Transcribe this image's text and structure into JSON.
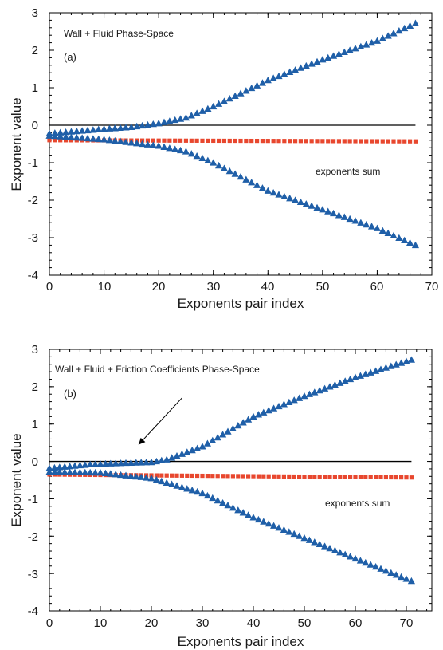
{
  "colors": {
    "triangle": "#1f5fa8",
    "square": "#e8472e",
    "zero_line": "#000000",
    "axis": "#000000"
  },
  "chart_data": [
    {
      "type": "scatter",
      "title": "Wall + Fluid Phase-Space",
      "panel_label": "(a)",
      "xlabel": "Exponents pair index",
      "ylabel": "Exponent value",
      "xlim": [
        0,
        70
      ],
      "ylim": [
        -4,
        3
      ],
      "x_ticks": [
        0,
        10,
        20,
        30,
        40,
        50,
        60,
        70
      ],
      "y_ticks": [
        -4,
        -3,
        -2,
        -1,
        0,
        1,
        2,
        3
      ],
      "grid": false,
      "reference_line_y": 0,
      "annotations": [
        {
          "text": "exponents sum",
          "x": 40,
          "y": -1.2
        }
      ],
      "series": [
        {
          "marker": "triangle",
          "n": 68,
          "knots": [
            [
              0,
              -0.22
            ],
            [
              10,
              -0.1
            ],
            [
              15,
              -0.05
            ],
            [
              20,
              0.05
            ],
            [
              25,
              0.2
            ],
            [
              30,
              0.5
            ],
            [
              40,
              1.2
            ],
            [
              50,
              1.75
            ],
            [
              60,
              2.25
            ],
            [
              67,
              2.72
            ]
          ]
        },
        {
          "marker": "triangle",
          "n": 68,
          "knots": [
            [
              0,
              -0.28
            ],
            [
              10,
              -0.38
            ],
            [
              20,
              -0.55
            ],
            [
              25,
              -0.7
            ],
            [
              30,
              -1.0
            ],
            [
              40,
              -1.75
            ],
            [
              50,
              -2.25
            ],
            [
              60,
              -2.75
            ],
            [
              67,
              -3.2
            ]
          ]
        },
        {
          "name": "exponents sum",
          "marker": "square",
          "n": 68,
          "knots": [
            [
              0,
              -0.4
            ],
            [
              67,
              -0.43
            ]
          ]
        }
      ]
    },
    {
      "type": "scatter",
      "title": "Wall + Fluid + Friction Coefficients Phase-Space",
      "panel_label": "(b)",
      "xlabel": "Exponents pair index",
      "ylabel": "Exponent value",
      "xlim": [
        0,
        75
      ],
      "ylim": [
        -4,
        3
      ],
      "x_ticks": [
        0,
        10,
        20,
        30,
        40,
        50,
        60,
        70
      ],
      "y_ticks": [
        -4,
        -3,
        -2,
        -1,
        0,
        1,
        2,
        3
      ],
      "grid": false,
      "reference_line_y": 0,
      "annotations": [
        {
          "text": "exponents sum",
          "x": 44,
          "y": -1.2
        }
      ],
      "arrow": {
        "from": [
          26,
          1.7
        ],
        "to": [
          17.5,
          0.45
        ]
      },
      "series": [
        {
          "marker": "triangle",
          "n": 72,
          "knots": [
            [
              0,
              -0.18
            ],
            [
              8,
              -0.08
            ],
            [
              15,
              -0.04
            ],
            [
              20,
              -0.02
            ],
            [
              23,
              0.05
            ],
            [
              30,
              0.4
            ],
            [
              40,
              1.2
            ],
            [
              50,
              1.75
            ],
            [
              60,
              2.25
            ],
            [
              71,
              2.72
            ]
          ]
        },
        {
          "marker": "triangle",
          "n": 72,
          "knots": [
            [
              0,
              -0.28
            ],
            [
              10,
              -0.3
            ],
            [
              20,
              -0.45
            ],
            [
              30,
              -0.85
            ],
            [
              40,
              -1.5
            ],
            [
              50,
              -2.05
            ],
            [
              60,
              -2.6
            ],
            [
              71,
              -3.2
            ]
          ]
        },
        {
          "name": "exponents sum",
          "marker": "square",
          "n": 72,
          "knots": [
            [
              0,
              -0.35
            ],
            [
              71,
              -0.43
            ]
          ]
        }
      ]
    }
  ]
}
